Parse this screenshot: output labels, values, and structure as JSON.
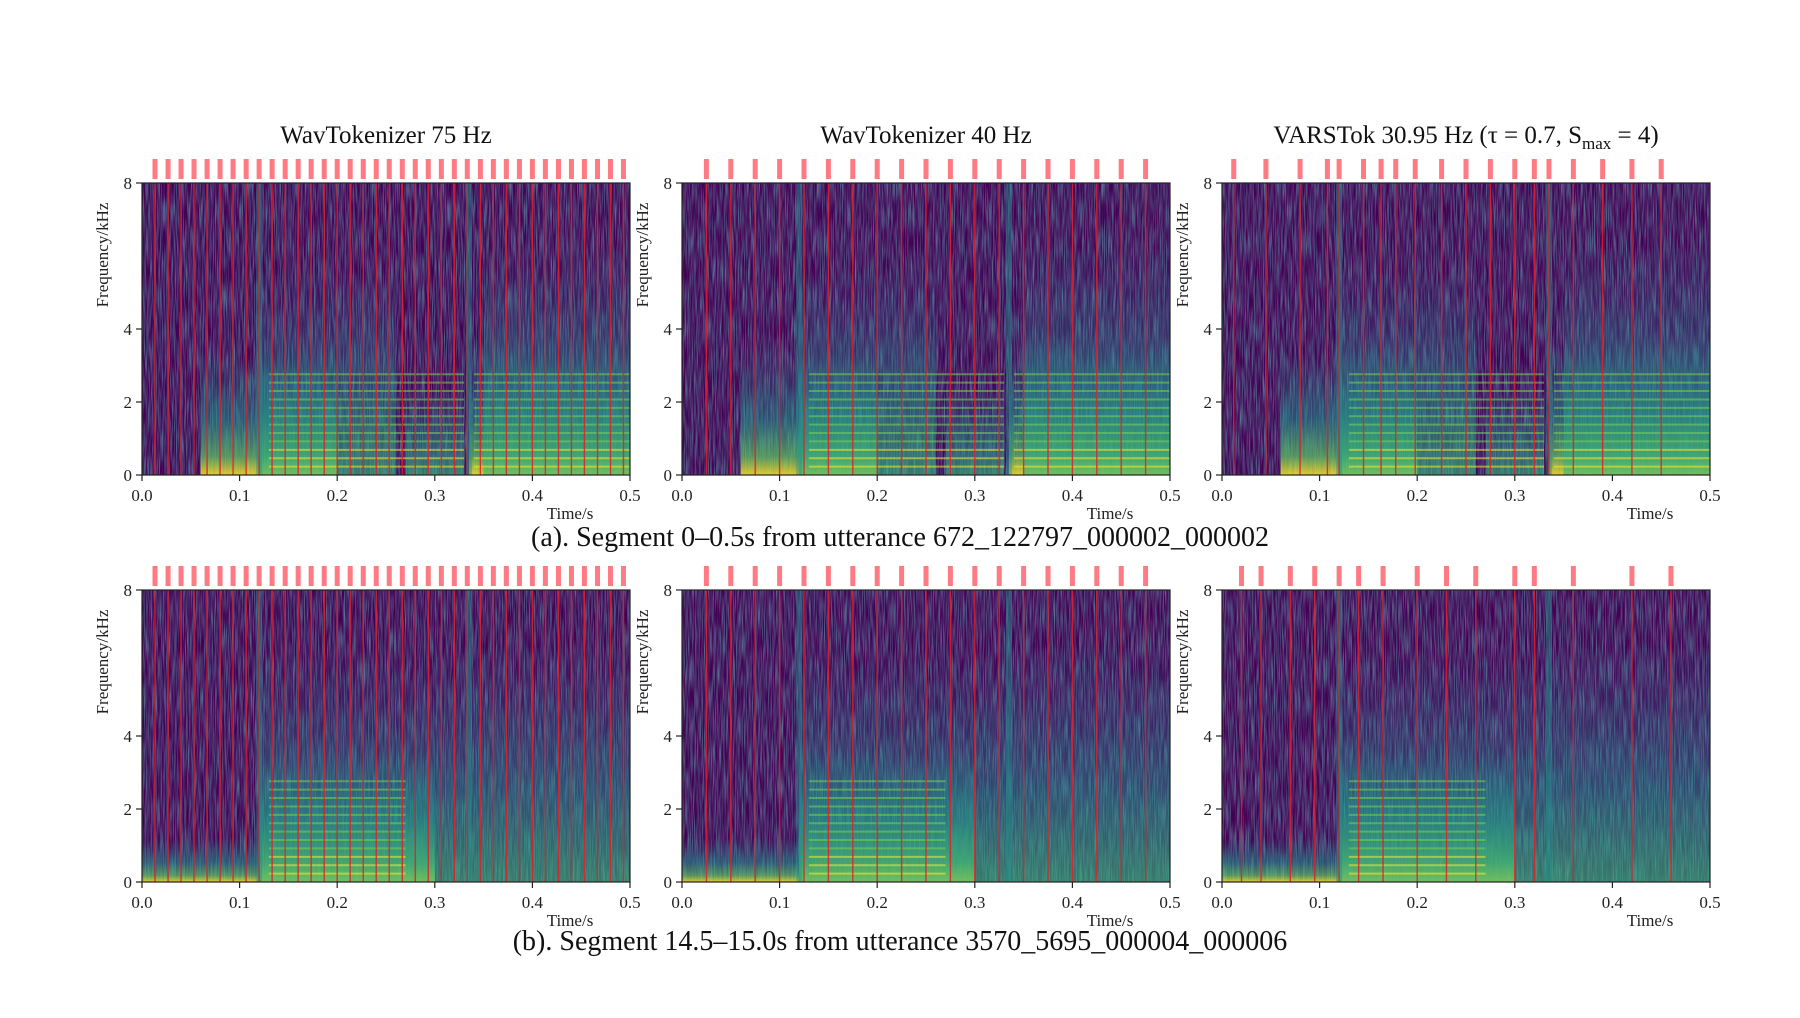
{
  "figure": {
    "caption_a": "(a). Segment 0–0.5s from utterance 672_122797_000002_000002",
    "caption_b": "(b). Segment 14.5–15.0s from utterance 3570_5695_000004_000006"
  },
  "colors": {
    "token_line": "#e0202a",
    "token_label": "#ff4d5a",
    "cmap_low": "#440154",
    "cmap_mid": "#21918c",
    "cmap_high": "#fde725"
  },
  "chart_data": [
    {
      "type": "heatmap",
      "row": "a",
      "title": "WavTokenizer 75 Hz",
      "xlabel": "Time/s",
      "ylabel": "Frequency/kHz",
      "xlim": [
        0.0,
        0.5
      ],
      "ylim": [
        0,
        8
      ],
      "xticks": [
        "0.0",
        "0.1",
        "0.2",
        "0.3",
        "0.4",
        "0.5"
      ],
      "yticks": [
        "0",
        "2",
        "4",
        "8"
      ],
      "token_rate_hz": 75,
      "token_boundaries_s": [
        0.0133,
        0.0267,
        0.04,
        0.0533,
        0.0667,
        0.08,
        0.0933,
        0.1067,
        0.12,
        0.1333,
        0.1467,
        0.16,
        0.1733,
        0.1867,
        0.2,
        0.2133,
        0.2267,
        0.24,
        0.2533,
        0.2667,
        0.28,
        0.2933,
        0.3067,
        0.32,
        0.3333,
        0.3467,
        0.36,
        0.3733,
        0.3867,
        0.4,
        0.4133,
        0.4267,
        0.44,
        0.4533,
        0.4667,
        0.48,
        0.4933
      ]
    },
    {
      "type": "heatmap",
      "row": "a",
      "title": "WavTokenizer 40 Hz",
      "xlabel": "Time/s",
      "ylabel": "Frequency/kHz",
      "xlim": [
        0.0,
        0.5
      ],
      "ylim": [
        0,
        8
      ],
      "xticks": [
        "0.0",
        "0.1",
        "0.2",
        "0.3",
        "0.4",
        "0.5"
      ],
      "yticks": [
        "0",
        "2",
        "4",
        "8"
      ],
      "token_rate_hz": 40,
      "token_boundaries_s": [
        0.025,
        0.05,
        0.075,
        0.1,
        0.125,
        0.15,
        0.175,
        0.2,
        0.225,
        0.25,
        0.275,
        0.3,
        0.325,
        0.35,
        0.375,
        0.4,
        0.425,
        0.45,
        0.475
      ]
    },
    {
      "type": "heatmap",
      "row": "a",
      "title": "VARSTok 30.95 Hz (τ = 0.7, S",
      "title_sub": "max",
      "title_tail": " = 4)",
      "xlabel": "Time/s",
      "ylabel": "Frequency/kHz",
      "xlim": [
        0.0,
        0.5
      ],
      "ylim": [
        0,
        8
      ],
      "xticks": [
        "0.0",
        "0.1",
        "0.2",
        "0.3",
        "0.4",
        "0.5"
      ],
      "yticks": [
        "0",
        "2",
        "4",
        "8"
      ],
      "token_rate_hz": 30.95,
      "token_boundaries_s": [
        0.012,
        0.045,
        0.08,
        0.108,
        0.12,
        0.145,
        0.163,
        0.178,
        0.198,
        0.225,
        0.25,
        0.275,
        0.3,
        0.32,
        0.335,
        0.36,
        0.39,
        0.42,
        0.45
      ]
    },
    {
      "type": "heatmap",
      "row": "b",
      "title": "",
      "xlabel": "Time/s",
      "ylabel": "Frequency/kHz",
      "xlim": [
        0.0,
        0.5
      ],
      "ylim": [
        0,
        8
      ],
      "xticks": [
        "0.0",
        "0.1",
        "0.2",
        "0.3",
        "0.4",
        "0.5"
      ],
      "yticks": [
        "0",
        "2",
        "4",
        "8"
      ],
      "token_rate_hz": 75,
      "token_boundaries_s": [
        0.0133,
        0.0267,
        0.04,
        0.0533,
        0.0667,
        0.08,
        0.0933,
        0.1067,
        0.12,
        0.1333,
        0.1467,
        0.16,
        0.1733,
        0.1867,
        0.2,
        0.2133,
        0.2267,
        0.24,
        0.2533,
        0.2667,
        0.28,
        0.2933,
        0.3067,
        0.32,
        0.3333,
        0.3467,
        0.36,
        0.3733,
        0.3867,
        0.4,
        0.4133,
        0.4267,
        0.44,
        0.4533,
        0.4667,
        0.48,
        0.4933
      ]
    },
    {
      "type": "heatmap",
      "row": "b",
      "title": "",
      "xlabel": "Time/s",
      "ylabel": "Frequency/kHz",
      "xlim": [
        0.0,
        0.5
      ],
      "ylim": [
        0,
        8
      ],
      "xticks": [
        "0.0",
        "0.1",
        "0.2",
        "0.3",
        "0.4",
        "0.5"
      ],
      "yticks": [
        "0",
        "2",
        "4",
        "8"
      ],
      "token_rate_hz": 40,
      "token_boundaries_s": [
        0.025,
        0.05,
        0.075,
        0.1,
        0.125,
        0.15,
        0.175,
        0.2,
        0.225,
        0.25,
        0.275,
        0.3,
        0.325,
        0.35,
        0.375,
        0.4,
        0.425,
        0.45,
        0.475
      ]
    },
    {
      "type": "heatmap",
      "row": "b",
      "title": "",
      "xlabel": "Time/s",
      "ylabel": "Frequency/kHz",
      "xlim": [
        0.0,
        0.5
      ],
      "ylim": [
        0,
        8
      ],
      "xticks": [
        "0.0",
        "0.1",
        "0.2",
        "0.3",
        "0.4",
        "0.5"
      ],
      "yticks": [
        "0",
        "2",
        "4",
        "8"
      ],
      "token_rate_hz": 30.95,
      "token_boundaries_s": [
        0.02,
        0.04,
        0.07,
        0.095,
        0.12,
        0.14,
        0.165,
        0.2,
        0.23,
        0.26,
        0.3,
        0.32,
        0.36,
        0.42,
        0.46
      ]
    }
  ]
}
